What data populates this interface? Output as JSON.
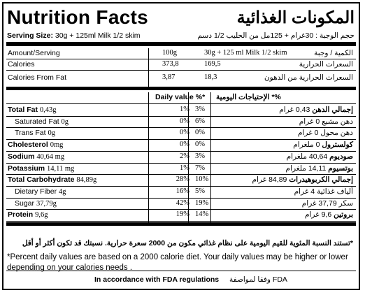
{
  "title_en": "Nutrition Facts",
  "title_ar": "المكونات الغذائية",
  "serving_label_en": "Serving Size:",
  "serving_value_en": "30g + 125ml Milk 1/2 skim",
  "serving_ar": "حجم الوجبة : 30غرام + 125مل من الحليب 1/2 دسم",
  "header": {
    "amount_en": "Amount/Serving",
    "col1": "100g",
    "col2": "30g + 125 ml Milk 1/2 skim",
    "amount_ar": "الكمية / وجبة"
  },
  "calories": {
    "en": "Calories",
    "v1": "373,8",
    "v2": "169,5",
    "ar": "السعرات الحرارية"
  },
  "calories_fat": {
    "en": "Calories From Fat",
    "v1": "3,87",
    "v2": "18,3",
    "ar": "السعرات الحرارية من الدهون"
  },
  "daily_value_en": "Daily value %*",
  "daily_value_ar": "%* الإحتياجات اليومية",
  "nutrients": [
    {
      "en_name": "Total Fat",
      "en_val": "0,43g",
      "bold": true,
      "indent": false,
      "p1": "1%",
      "p2": "3%",
      "ar_name": "إجمالي الدهن",
      "ar_val": "0,43 غرام"
    },
    {
      "en_name": "Saturated Fat",
      "en_val": "0g",
      "bold": false,
      "indent": true,
      "p1": "0%",
      "p2": "6%",
      "ar_name": "دهن مشبع",
      "ar_val": "0 غرام"
    },
    {
      "en_name": "Trans Fat",
      "en_val": "0g",
      "bold": false,
      "indent": true,
      "p1": "0%",
      "p2": "0%",
      "ar_name": "دهن محول",
      "ar_val": "0 غرام"
    },
    {
      "en_name": "Cholesterol",
      "en_val": "0mg",
      "bold": true,
      "indent": false,
      "p1": "0%",
      "p2": "0%",
      "ar_name": "كولسترول",
      "ar_val": "0 ملغرام"
    },
    {
      "en_name": "Sodium",
      "en_val": "40,64 mg",
      "bold": true,
      "indent": false,
      "p1": "2%",
      "p2": "3%",
      "ar_name": "صوديوم",
      "ar_val": "40,64 ملغرام"
    },
    {
      "en_name": "Potassium",
      "en_val": "14,11 mg",
      "bold": true,
      "indent": false,
      "p1": "1%",
      "p2": "7%",
      "ar_name": "بوتسيوم",
      "ar_val": "14,11 ملغرام"
    },
    {
      "en_name": "Total Carbohydrate",
      "en_val": "84,89g",
      "bold": true,
      "indent": false,
      "p1": "28%",
      "p2": "10%",
      "ar_name": "إجمالي الكربوهيدرات",
      "ar_val": "84,89 غرام"
    },
    {
      "en_name": "Dietary Fiber",
      "en_val": "4g",
      "bold": false,
      "indent": true,
      "p1": "16%",
      "p2": "5%",
      "ar_name": "ألياف غذائية",
      "ar_val": "4 غرام"
    },
    {
      "en_name": "Sugar",
      "en_val": "37,79g",
      "bold": false,
      "indent": true,
      "p1": "42%",
      "p2": "19%",
      "ar_name": "سكر",
      "ar_val": "37,79 غرام"
    },
    {
      "en_name": "Protein",
      "en_val": "9,6g",
      "bold": true,
      "indent": false,
      "p1": "19%",
      "p2": "14%",
      "ar_name": "بروتين",
      "ar_val": "9,6 غرام"
    }
  ],
  "footnote_ar": "*تستند النسبة المئوية للقيم اليومية على نظام غذائي مكون من 2000 سعرة حرارية. نسبتك قد تكون أكثر أو أقل",
  "footnote_en": "*Percent daily values are based on a 2000 calorie diet. Your daily values may be higher or lower depending on your calories needs .",
  "fda_en": "In accordance with FDA regulations",
  "fda_ar": "وفقا لمواصفة FDA",
  "colors": {
    "ink": "#000000",
    "background": "#ffffff"
  }
}
